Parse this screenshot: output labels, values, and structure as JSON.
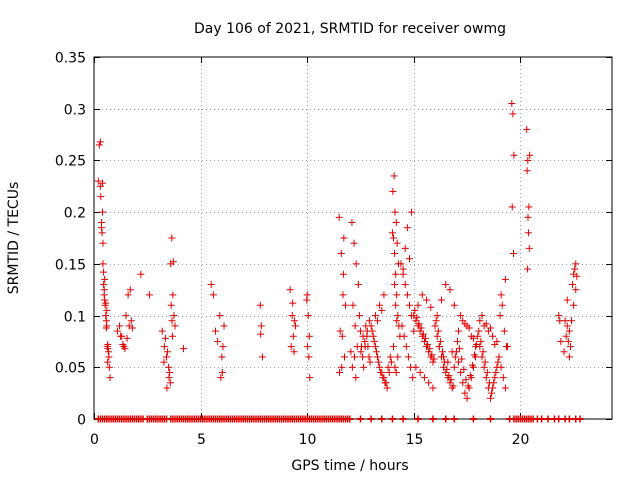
{
  "chart_data": {
    "type": "scatter",
    "title": "Day 106 of 2021, SRMTID for receiver owmg",
    "xlabel": "GPS time / hours",
    "ylabel": "SRMTID / TECUs",
    "xlim": [
      0,
      24.3
    ],
    "ylim": [
      0,
      0.35
    ],
    "grid": true,
    "marker": "+",
    "color": "#dd0000",
    "x_ticks": [
      0,
      5,
      10,
      15,
      20
    ],
    "x_tick_labels": [
      "0",
      "5",
      "10",
      "15",
      "20"
    ],
    "y_ticks": [
      0,
      0.05,
      0.1,
      0.15,
      0.2,
      0.25,
      0.3,
      0.35
    ],
    "y_tick_labels": [
      "0",
      "0.05",
      "0.1",
      "0.15",
      "0.2",
      "0.25",
      "0.3",
      "0.35"
    ],
    "series": [
      {
        "name": "SRMTID",
        "x": [
          0.2,
          0.25,
          0.3,
          0.32,
          0.35,
          0.38,
          0.4,
          0.42,
          0.45,
          0.48,
          0.5,
          0.52,
          0.55,
          0.58,
          0.6,
          0.62,
          0.65,
          0.68,
          0.7,
          0.72,
          0.75,
          0.3,
          0.4,
          0.5,
          0.6,
          0.35,
          0.45,
          0.55,
          0.65,
          0.42,
          0.48,
          0.58,
          0.64,
          1.1,
          1.2,
          1.3,
          1.4,
          1.5,
          1.6,
          1.7,
          1.75,
          1.8,
          1.65,
          1.55,
          1.45,
          1.35,
          1.25,
          2.2,
          2.6,
          3.2,
          3.3,
          3.4,
          3.5,
          3.55,
          3.6,
          3.65,
          3.7,
          3.75,
          3.8,
          3.35,
          3.45,
          3.52,
          3.58,
          3.62,
          3.68,
          3.72,
          3.28,
          3.42,
          3.66,
          4.2,
          5.5,
          5.6,
          5.7,
          5.9,
          6.0,
          6.1,
          6.05,
          5.95,
          5.8,
          6.02,
          7.8,
          7.85,
          7.9,
          7.82,
          9.2,
          9.3,
          9.4,
          9.35,
          9.25,
          9.45,
          9.32,
          9.38,
          10.0,
          10.05,
          10.1,
          10.02,
          10.08,
          10.12,
          9.98,
          11.5,
          11.6,
          11.7,
          11.8,
          11.55,
          11.65,
          11.75,
          11.62,
          11.52,
          11.68,
          11.72,
          12.1,
          12.2,
          12.3,
          12.4,
          12.15,
          12.25,
          12.35,
          12.22,
          12.12,
          12.28,
          12.05,
          12.45,
          12.5,
          12.55,
          12.6,
          12.65,
          12.7,
          12.75,
          12.8,
          12.85,
          12.9,
          12.95,
          12.52,
          12.62,
          12.72,
          12.82,
          12.92,
          13.0,
          13.1,
          13.2,
          13.3,
          13.4,
          13.5,
          13.6,
          13.7,
          13.8,
          13.9,
          13.05,
          13.15,
          13.25,
          13.35,
          13.45,
          13.55,
          13.65,
          13.75,
          13.85,
          13.95,
          13.2,
          13.4,
          13.6,
          13.3,
          13.5,
          14.0,
          14.05,
          14.1,
          14.15,
          14.2,
          14.25,
          14.3,
          14.35,
          14.02,
          14.08,
          14.12,
          14.18,
          14.22,
          14.28,
          14.1,
          14.15,
          14.2,
          14.05,
          14.25,
          14.12,
          14.18,
          14.4,
          14.5,
          14.6,
          14.7,
          14.8,
          14.9,
          14.45,
          14.55,
          14.65,
          14.75,
          14.85,
          14.95,
          14.5,
          14.7,
          14.9,
          14.6,
          14.8,
          15.0,
          15.1,
          15.2,
          15.3,
          15.4,
          15.5,
          15.6,
          15.7,
          15.8,
          15.9,
          15.05,
          15.15,
          15.25,
          15.35,
          15.45,
          15.55,
          15.65,
          15.75,
          15.85,
          15.95,
          15.1,
          15.3,
          15.5,
          15.7,
          15.9,
          15.2,
          15.4,
          15.6,
          15.8,
          15.0,
          16.0,
          16.1,
          16.2,
          16.3,
          16.4,
          16.5,
          16.6,
          16.7,
          16.8,
          16.9,
          16.05,
          16.15,
          16.25,
          16.35,
          16.45,
          16.55,
          16.65,
          16.75,
          16.85,
          16.95,
          16.1,
          16.3,
          16.5,
          16.7,
          16.9,
          16.2,
          16.4,
          16.6,
          16.8,
          17.0,
          17.1,
          17.2,
          17.3,
          17.4,
          17.5,
          17.6,
          17.7,
          17.8,
          17.9,
          17.05,
          17.15,
          17.25,
          17.35,
          17.45,
          17.55,
          17.65,
          17.75,
          17.85,
          17.95,
          17.1,
          17.3,
          17.5,
          17.7,
          17.9,
          17.2,
          17.4,
          17.6,
          17.8,
          18.0,
          18.1,
          18.2,
          18.3,
          18.4,
          18.5,
          18.6,
          18.7,
          18.8,
          18.9,
          18.05,
          18.15,
          18.25,
          18.35,
          18.45,
          18.55,
          18.65,
          18.75,
          18.85,
          18.95,
          18.1,
          18.3,
          18.5,
          18.7,
          18.9,
          18.2,
          18.4,
          18.6,
          18.8,
          19.0,
          19.1,
          19.2,
          19.3,
          19.4,
          19.05,
          19.15,
          19.25,
          19.35,
          19.1,
          19.3,
          19.6,
          19.65,
          19.7,
          19.62,
          19.68,
          20.3,
          20.35,
          20.4,
          20.32,
          20.38,
          20.42,
          20.34,
          20.36,
          20.44,
          21.8,
          21.85,
          21.9,
          22.1,
          22.2,
          22.3,
          22.15,
          22.25,
          22.35,
          22.05,
          22.4,
          22.45,
          22.5,
          22.55,
          22.6,
          22.65,
          22.5,
          22.6,
          22.2,
          22.3
        ],
        "y": [
          0.23,
          0.265,
          0.225,
          0.215,
          0.19,
          0.18,
          0.2,
          0.15,
          0.13,
          0.12,
          0.115,
          0.11,
          0.1,
          0.095,
          0.09,
          0.07,
          0.068,
          0.065,
          0.06,
          0.05,
          0.04,
          0.268,
          0.228,
          0.135,
          0.105,
          0.185,
          0.142,
          0.112,
          0.072,
          0.17,
          0.125,
          0.088,
          0.055,
          0.085,
          0.09,
          0.08,
          0.07,
          0.1,
          0.12,
          0.125,
          0.095,
          0.088,
          0.09,
          0.078,
          0.068,
          0.072,
          0.08,
          0.14,
          0.12,
          0.085,
          0.07,
          0.06,
          0.05,
          0.045,
          0.15,
          0.175,
          0.12,
          0.1,
          0.09,
          0.078,
          0.065,
          0.04,
          0.035,
          0.11,
          0.08,
          0.152,
          0.055,
          0.03,
          0.095,
          0.068,
          0.13,
          0.12,
          0.085,
          0.1,
          0.06,
          0.09,
          0.07,
          0.04,
          0.075,
          0.045,
          0.11,
          0.09,
          0.06,
          0.082,
          0.125,
          0.1,
          0.095,
          0.08,
          0.07,
          0.09,
          0.112,
          0.065,
          0.12,
          0.1,
          0.08,
          0.07,
          0.06,
          0.04,
          0.115,
          0.195,
          0.16,
          0.14,
          0.11,
          0.085,
          0.08,
          0.06,
          0.05,
          0.045,
          0.12,
          0.175,
          0.19,
          0.17,
          0.15,
          0.13,
          0.11,
          0.09,
          0.07,
          0.06,
          0.05,
          0.04,
          0.065,
          0.1,
          0.085,
          0.07,
          0.06,
          0.05,
          0.075,
          0.09,
          0.08,
          0.07,
          0.06,
          0.055,
          0.065,
          0.08,
          0.07,
          0.085,
          0.095,
          0.09,
          0.08,
          0.07,
          0.06,
          0.05,
          0.045,
          0.04,
          0.035,
          0.05,
          0.06,
          0.085,
          0.075,
          0.065,
          0.055,
          0.045,
          0.04,
          0.035,
          0.03,
          0.045,
          0.055,
          0.1,
          0.11,
          0.12,
          0.095,
          0.105,
          0.18,
          0.175,
          0.16,
          0.14,
          0.12,
          0.1,
          0.09,
          0.08,
          0.22,
          0.235,
          0.2,
          0.19,
          0.17,
          0.15,
          0.13,
          0.11,
          0.095,
          0.07,
          0.06,
          0.05,
          0.045,
          0.15,
          0.14,
          0.13,
          0.12,
          0.11,
          0.1,
          0.09,
          0.08,
          0.07,
          0.06,
          0.05,
          0.04,
          0.145,
          0.185,
          0.2,
          0.165,
          0.155,
          0.1,
          0.095,
          0.09,
          0.085,
          0.08,
          0.075,
          0.07,
          0.065,
          0.06,
          0.055,
          0.105,
          0.098,
          0.092,
          0.088,
          0.082,
          0.078,
          0.072,
          0.068,
          0.062,
          0.058,
          0.05,
          0.045,
          0.04,
          0.035,
          0.03,
          0.11,
          0.12,
          0.115,
          0.108,
          0.085,
          0.09,
          0.08,
          0.07,
          0.06,
          0.05,
          0.045,
          0.04,
          0.035,
          0.03,
          0.05,
          0.095,
          0.085,
          0.075,
          0.065,
          0.055,
          0.048,
          0.042,
          0.038,
          0.032,
          0.06,
          0.1,
          0.115,
          0.13,
          0.125,
          0.11,
          0.07,
          0.06,
          0.055,
          0.065,
          0.065,
          0.055,
          0.045,
          0.035,
          0.025,
          0.02,
          0.03,
          0.04,
          0.05,
          0.06,
          0.075,
          0.068,
          0.058,
          0.048,
          0.038,
          0.032,
          0.042,
          0.052,
          0.062,
          0.072,
          0.085,
          0.095,
          0.09,
          0.08,
          0.07,
          0.1,
          0.092,
          0.088,
          0.078,
          0.08,
          0.07,
          0.06,
          0.05,
          0.04,
          0.03,
          0.02,
          0.03,
          0.04,
          0.05,
          0.085,
          0.075,
          0.065,
          0.055,
          0.045,
          0.035,
          0.025,
          0.035,
          0.045,
          0.055,
          0.095,
          0.09,
          0.085,
          0.08,
          0.075,
          0.1,
          0.092,
          0.088,
          0.072,
          0.06,
          0.05,
          0.04,
          0.03,
          0.07,
          0.1,
          0.11,
          0.085,
          0.07,
          0.12,
          0.135,
          0.305,
          0.295,
          0.255,
          0.205,
          0.16,
          0.28,
          0.25,
          0.205,
          0.24,
          0.18,
          0.165,
          0.145,
          0.195,
          0.255,
          0.1,
          0.095,
          0.075,
          0.095,
          0.09,
          0.085,
          0.08,
          0.075,
          0.07,
          0.065,
          0.095,
          0.13,
          0.14,
          0.145,
          0.15,
          0.138,
          0.11,
          0.125,
          0.115,
          0.06
        ],
        "zero_x": [
          0.2,
          0.3,
          0.4,
          0.5,
          0.6,
          0.7,
          0.8,
          0.9,
          1.0,
          1.1,
          1.2,
          1.3,
          1.4,
          1.5,
          1.6,
          1.7,
          1.8,
          1.9,
          2.0,
          2.1,
          2.2,
          2.3,
          2.5,
          2.6,
          2.7,
          2.8,
          2.9,
          3.0,
          3.1,
          3.2,
          3.3,
          3.4,
          3.6,
          3.7,
          3.8,
          3.9,
          4.0,
          4.1,
          4.2,
          4.3,
          4.4,
          4.5,
          4.6,
          4.7,
          4.8,
          4.9,
          5.0,
          5.1,
          5.2,
          5.3,
          5.4,
          5.5,
          5.6,
          5.7,
          5.8,
          5.9,
          6.0,
          6.1,
          6.2,
          6.3,
          6.4,
          6.5,
          6.6,
          6.7,
          6.8,
          6.9,
          7.0,
          7.1,
          7.2,
          7.3,
          7.4,
          7.5,
          7.6,
          7.7,
          7.8,
          7.9,
          8.0,
          8.1,
          8.2,
          8.3,
          8.4,
          8.5,
          8.6,
          8.7,
          8.8,
          8.9,
          9.0,
          9.1,
          9.2,
          9.3,
          9.4,
          9.5,
          9.6,
          9.7,
          9.8,
          9.9,
          10.0,
          10.1,
          10.2,
          10.3,
          10.4,
          10.5,
          10.6,
          10.7,
          10.8,
          10.9,
          11.0,
          11.1,
          11.2,
          11.3,
          11.4,
          11.5,
          11.6,
          11.7,
          11.8,
          11.9,
          12.0,
          12.5,
          13.0,
          13.5,
          14.0,
          14.5,
          15.2,
          15.9,
          16.5,
          16.9,
          17.8,
          18.6,
          19.5,
          19.7,
          19.8,
          19.9,
          20.0,
          20.1,
          20.2,
          20.3,
          20.4,
          20.5,
          20.6,
          20.8,
          21.0,
          21.3,
          21.6,
          21.8,
          22.1,
          22.3,
          22.6,
          22.8
        ]
      }
    ]
  }
}
